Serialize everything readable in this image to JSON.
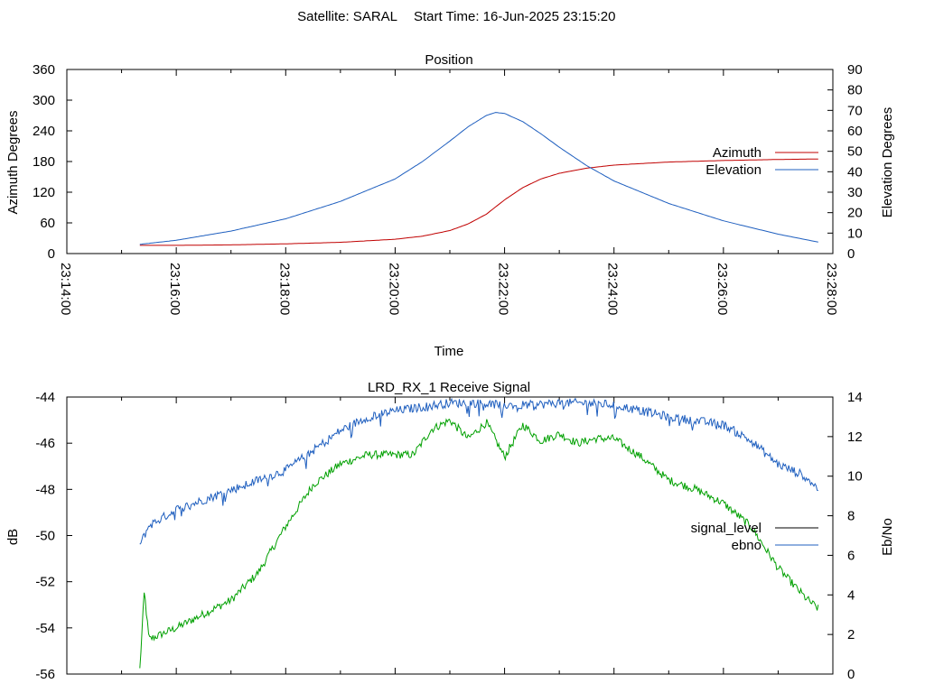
{
  "header": {
    "satellite": "Satellite: SARAL",
    "start_time": "Start Time: 16-Jun-2025 23:15:20"
  },
  "colors": {
    "azimuth": "#c00000",
    "elevation": "#1f5fbf",
    "signal_level_legend": "#000000",
    "signal_level_trace": "#00a000",
    "ebno": "#1f5fbf"
  },
  "chart_data": [
    {
      "type": "line",
      "title": "Position",
      "xlabel": "Time",
      "ylabel": "Azimuth Degrees",
      "y2label": "Elevation Degrees",
      "xlim": [
        "23:14:00",
        "23:28:00"
      ],
      "ylim": [
        0,
        360
      ],
      "y2lim": [
        0,
        90
      ],
      "xticks": [
        "23:14:00",
        "23:16:00",
        "23:18:00",
        "23:20:00",
        "23:22:00",
        "23:24:00",
        "23:26:00",
        "23:28:00"
      ],
      "yticks": [
        "0",
        "60",
        "120",
        "180",
        "240",
        "300",
        "360"
      ],
      "y2ticks": [
        "0",
        "10",
        "20",
        "30",
        "40",
        "50",
        "60",
        "70",
        "80",
        "90"
      ],
      "legend_position": "right",
      "series": [
        {
          "name": "Azimuth",
          "axis": "y",
          "x": [
            "23:15:20",
            "23:16:00",
            "23:17:00",
            "23:18:00",
            "23:19:00",
            "23:20:00",
            "23:20:30",
            "23:21:00",
            "23:21:20",
            "23:21:40",
            "23:22:00",
            "23:22:20",
            "23:22:40",
            "23:23:00",
            "23:23:30",
            "23:24:00",
            "23:25:00",
            "23:26:00",
            "23:27:00",
            "23:27:45"
          ],
          "values": [
            16,
            16,
            17,
            19,
            22,
            28,
            34,
            45,
            58,
            77,
            105,
            129,
            146,
            157,
            167,
            173,
            179,
            182,
            184,
            185
          ]
        },
        {
          "name": "Elevation",
          "axis": "y2",
          "x": [
            "23:15:20",
            "23:16:00",
            "23:17:00",
            "23:18:00",
            "23:19:00",
            "23:20:00",
            "23:20:30",
            "23:21:00",
            "23:21:20",
            "23:21:40",
            "23:21:50",
            "23:22:00",
            "23:22:20",
            "23:22:40",
            "23:23:00",
            "23:23:30",
            "23:24:00",
            "23:25:00",
            "23:26:00",
            "23:27:00",
            "23:27:45"
          ],
          "values": [
            4.5,
            6.5,
            11,
            17,
            25.5,
            36.5,
            45,
            55,
            62,
            67.5,
            69,
            68.5,
            64.5,
            58.5,
            52,
            43,
            35.5,
            24.5,
            16,
            9.5,
            5.5
          ]
        }
      ]
    },
    {
      "type": "line",
      "title": "LRD_RX_1 Receive Signal",
      "xlabel": "",
      "ylabel": "dB",
      "y2label": "Eb/No",
      "xlim": [
        "23:14:00",
        "23:28:00"
      ],
      "ylim": [
        -56,
        -44
      ],
      "y2lim": [
        0,
        14
      ],
      "yticks": [
        "-44",
        "-46",
        "-48",
        "-50",
        "-52",
        "-54",
        "-56"
      ],
      "y2ticks": [
        "0",
        "2",
        "4",
        "6",
        "8",
        "10",
        "12",
        "14"
      ],
      "legend_position": "right",
      "series": [
        {
          "name": "signal_level",
          "axis": "y",
          "x": [
            "23:15:20",
            "23:15:25",
            "23:15:30",
            "23:16:00",
            "23:16:30",
            "23:17:00",
            "23:17:30",
            "23:18:00",
            "23:18:30",
            "23:19:00",
            "23:19:30",
            "23:20:00",
            "23:20:20",
            "23:20:40",
            "23:21:00",
            "23:21:20",
            "23:21:40",
            "23:22:00",
            "23:22:20",
            "23:22:40",
            "23:23:00",
            "23:23:20",
            "23:23:40",
            "23:24:00",
            "23:24:30",
            "23:25:00",
            "23:25:30",
            "23:26:00",
            "23:26:30",
            "23:27:00",
            "23:27:30",
            "23:27:45"
          ],
          "values": [
            -55.8,
            -52.4,
            -54.5,
            -54.0,
            -53.4,
            -52.8,
            -51.6,
            -49.6,
            -47.8,
            -46.9,
            -46.5,
            -46.5,
            -46.5,
            -45.4,
            -45.0,
            -45.8,
            -45.1,
            -46.6,
            -45.2,
            -45.9,
            -45.6,
            -46.0,
            -45.8,
            -45.8,
            -46.6,
            -47.6,
            -48.0,
            -48.6,
            -49.6,
            -51.4,
            -52.7,
            -53.2
          ]
        },
        {
          "name": "ebno",
          "axis": "y2",
          "x": [
            "23:15:20",
            "23:15:30",
            "23:16:00",
            "23:16:30",
            "23:17:00",
            "23:17:30",
            "23:18:00",
            "23:18:30",
            "23:19:00",
            "23:19:30",
            "23:20:00",
            "23:20:30",
            "23:21:00",
            "23:21:30",
            "23:22:00",
            "23:22:30",
            "23:23:00",
            "23:23:30",
            "23:24:00",
            "23:24:30",
            "23:25:00",
            "23:25:30",
            "23:26:00",
            "23:26:30",
            "23:27:00",
            "23:27:30",
            "23:27:45"
          ],
          "values": [
            6.5,
            7.5,
            8.3,
            8.8,
            9.3,
            9.8,
            10.3,
            11.3,
            12.3,
            13.0,
            13.3,
            13.5,
            13.7,
            13.7,
            13.6,
            13.6,
            13.7,
            13.7,
            13.6,
            13.3,
            13.0,
            12.8,
            12.6,
            11.8,
            10.6,
            10.0,
            9.3
          ]
        }
      ]
    }
  ]
}
